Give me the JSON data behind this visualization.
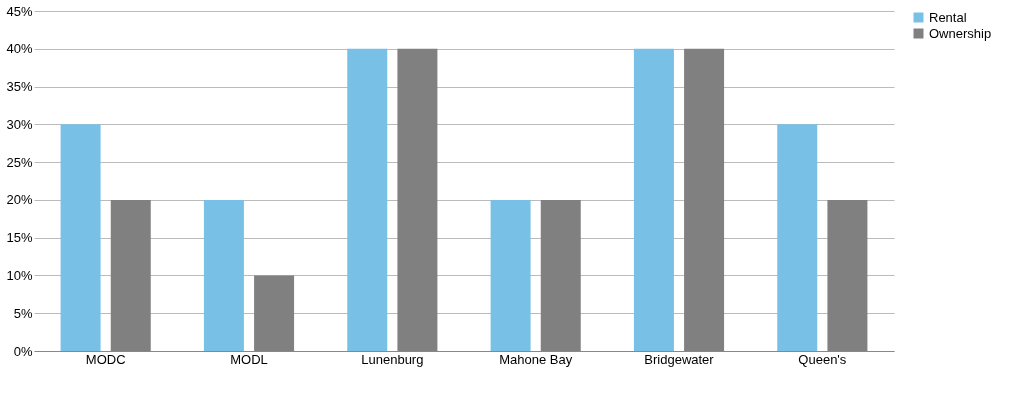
{
  "chart_data": {
    "type": "bar",
    "categories": [
      "MODC",
      "MODL",
      "Lunenburg",
      "Mahone Bay",
      "Bridgewater",
      "Queen's"
    ],
    "series": [
      {
        "name": "Rental",
        "color": "#78c0e6",
        "values": [
          30,
          20,
          40,
          20,
          40,
          30
        ]
      },
      {
        "name": "Ownership",
        "color": "#808080",
        "values": [
          20,
          10,
          40,
          20,
          40,
          20
        ]
      }
    ],
    "ylim": [
      0,
      45
    ],
    "yticks": [
      {
        "value": 0,
        "label": "0%"
      },
      {
        "value": 5,
        "label": "5%"
      },
      {
        "value": 10,
        "label": "10%"
      },
      {
        "value": 15,
        "label": "15%"
      },
      {
        "value": 20,
        "label": "20%"
      },
      {
        "value": 25,
        "label": "25%"
      },
      {
        "value": 30,
        "label": "30%"
      },
      {
        "value": 35,
        "label": "35%"
      },
      {
        "value": 40,
        "label": "40%"
      },
      {
        "value": 45,
        "label": "45%"
      }
    ],
    "grid": "y",
    "legend": "right"
  }
}
